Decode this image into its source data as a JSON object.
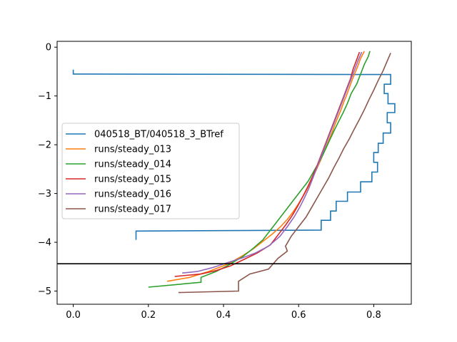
{
  "chart_data": {
    "type": "line",
    "title": "",
    "xlabel": "",
    "ylabel": "",
    "xlim": [
      -0.043,
      0.9
    ],
    "ylim": [
      -5.27,
      0.12
    ],
    "xticks": [
      0.0,
      0.2,
      0.4,
      0.6,
      0.8
    ],
    "xtick_labels": [
      "0.0",
      "0.2",
      "0.4",
      "0.6",
      "0.8"
    ],
    "yticks": [
      0,
      -1,
      -2,
      -3,
      -4,
      -5
    ],
    "ytick_labels": [
      "0",
      "−1",
      "−2",
      "−3",
      "−4",
      "−5"
    ],
    "hline": {
      "y": -4.44,
      "color": "#000000"
    },
    "legend_position": "center-left",
    "series": [
      {
        "name": "040518_BT/040518_3_BTref",
        "color": "#1f77b4",
        "points": [
          [
            0.0,
            -0.46
          ],
          [
            0.0,
            -0.55
          ],
          [
            0.845,
            -0.56
          ],
          [
            0.845,
            -0.76
          ],
          [
            0.828,
            -0.76
          ],
          [
            0.828,
            -0.95
          ],
          [
            0.838,
            -0.95
          ],
          [
            0.838,
            -1.16
          ],
          [
            0.856,
            -1.16
          ],
          [
            0.856,
            -1.34
          ],
          [
            0.836,
            -1.34
          ],
          [
            0.836,
            -1.55
          ],
          [
            0.845,
            -1.55
          ],
          [
            0.845,
            -1.76
          ],
          [
            0.825,
            -1.76
          ],
          [
            0.825,
            -1.97
          ],
          [
            0.812,
            -1.97
          ],
          [
            0.812,
            -2.16
          ],
          [
            0.8,
            -2.16
          ],
          [
            0.8,
            -2.36
          ],
          [
            0.81,
            -2.36
          ],
          [
            0.81,
            -2.56
          ],
          [
            0.795,
            -2.56
          ],
          [
            0.795,
            -2.76
          ],
          [
            0.765,
            -2.76
          ],
          [
            0.765,
            -2.97
          ],
          [
            0.73,
            -2.97
          ],
          [
            0.73,
            -3.16
          ],
          [
            0.7,
            -3.16
          ],
          [
            0.7,
            -3.36
          ],
          [
            0.685,
            -3.36
          ],
          [
            0.685,
            -3.55
          ],
          [
            0.66,
            -3.55
          ],
          [
            0.66,
            -3.75
          ],
          [
            0.167,
            -3.77
          ],
          [
            0.167,
            -3.95
          ]
        ]
      },
      {
        "name": "runs/steady_013",
        "color": "#ff7f0e",
        "points": [
          [
            0.775,
            -0.08
          ],
          [
            0.765,
            -0.23
          ],
          [
            0.758,
            -0.38
          ],
          [
            0.75,
            -0.53
          ],
          [
            0.742,
            -0.68
          ],
          [
            0.735,
            -0.83
          ],
          [
            0.728,
            -0.98
          ],
          [
            0.72,
            -1.13
          ],
          [
            0.713,
            -1.28
          ],
          [
            0.705,
            -1.43
          ],
          [
            0.697,
            -1.58
          ],
          [
            0.69,
            -1.73
          ],
          [
            0.682,
            -1.88
          ],
          [
            0.674,
            -2.03
          ],
          [
            0.666,
            -2.18
          ],
          [
            0.658,
            -2.33
          ],
          [
            0.649,
            -2.48
          ],
          [
            0.64,
            -2.63
          ],
          [
            0.631,
            -2.78
          ],
          [
            0.621,
            -2.93
          ],
          [
            0.61,
            -3.08
          ],
          [
            0.598,
            -3.23
          ],
          [
            0.585,
            -3.38
          ],
          [
            0.57,
            -3.53
          ],
          [
            0.552,
            -3.68
          ],
          [
            0.53,
            -3.83
          ],
          [
            0.505,
            -3.98
          ],
          [
            0.48,
            -4.13
          ],
          [
            0.45,
            -4.28
          ],
          [
            0.41,
            -4.45
          ],
          [
            0.36,
            -4.6
          ],
          [
            0.31,
            -4.72
          ],
          [
            0.25,
            -4.8
          ]
        ]
      },
      {
        "name": "runs/steady_014",
        "color": "#2ca02c",
        "points": [
          [
            0.79,
            -0.08
          ],
          [
            0.785,
            -0.2
          ],
          [
            0.775,
            -0.35
          ],
          [
            0.765,
            -0.55
          ],
          [
            0.755,
            -0.75
          ],
          [
            0.74,
            -0.95
          ],
          [
            0.73,
            -1.15
          ],
          [
            0.718,
            -1.35
          ],
          [
            0.705,
            -1.55
          ],
          [
            0.692,
            -1.75
          ],
          [
            0.68,
            -1.95
          ],
          [
            0.668,
            -2.15
          ],
          [
            0.655,
            -2.35
          ],
          [
            0.64,
            -2.55
          ],
          [
            0.625,
            -2.75
          ],
          [
            0.605,
            -2.95
          ],
          [
            0.585,
            -3.15
          ],
          [
            0.565,
            -3.35
          ],
          [
            0.545,
            -3.55
          ],
          [
            0.525,
            -3.75
          ],
          [
            0.505,
            -3.95
          ],
          [
            0.475,
            -4.15
          ],
          [
            0.45,
            -4.3
          ],
          [
            0.41,
            -4.48
          ],
          [
            0.38,
            -4.6
          ],
          [
            0.34,
            -4.72
          ],
          [
            0.34,
            -4.82
          ],
          [
            0.2,
            -4.92
          ]
        ]
      },
      {
        "name": "runs/steady_015",
        "color": "#d62728",
        "points": [
          [
            0.762,
            -0.1
          ],
          [
            0.755,
            -0.25
          ],
          [
            0.745,
            -0.45
          ],
          [
            0.738,
            -0.65
          ],
          [
            0.728,
            -0.85
          ],
          [
            0.718,
            -1.05
          ],
          [
            0.708,
            -1.25
          ],
          [
            0.698,
            -1.45
          ],
          [
            0.688,
            -1.65
          ],
          [
            0.678,
            -1.85
          ],
          [
            0.668,
            -2.05
          ],
          [
            0.658,
            -2.25
          ],
          [
            0.648,
            -2.45
          ],
          [
            0.637,
            -2.65
          ],
          [
            0.625,
            -2.85
          ],
          [
            0.612,
            -3.05
          ],
          [
            0.598,
            -3.25
          ],
          [
            0.583,
            -3.45
          ],
          [
            0.565,
            -3.65
          ],
          [
            0.545,
            -3.85
          ],
          [
            0.525,
            -4.05
          ],
          [
            0.49,
            -4.22
          ],
          [
            0.455,
            -4.35
          ],
          [
            0.42,
            -4.48
          ],
          [
            0.38,
            -4.58
          ],
          [
            0.34,
            -4.65
          ],
          [
            0.27,
            -4.7
          ]
        ]
      },
      {
        "name": "runs/steady_016",
        "color": "#9467bd",
        "points": [
          [
            0.768,
            -0.1
          ],
          [
            0.758,
            -0.28
          ],
          [
            0.748,
            -0.48
          ],
          [
            0.738,
            -0.68
          ],
          [
            0.728,
            -0.88
          ],
          [
            0.718,
            -1.08
          ],
          [
            0.708,
            -1.28
          ],
          [
            0.698,
            -1.48
          ],
          [
            0.688,
            -1.68
          ],
          [
            0.678,
            -1.88
          ],
          [
            0.668,
            -2.08
          ],
          [
            0.658,
            -2.28
          ],
          [
            0.648,
            -2.48
          ],
          [
            0.638,
            -2.68
          ],
          [
            0.628,
            -2.88
          ],
          [
            0.616,
            -3.08
          ],
          [
            0.603,
            -3.28
          ],
          [
            0.588,
            -3.48
          ],
          [
            0.57,
            -3.68
          ],
          [
            0.55,
            -3.88
          ],
          [
            0.52,
            -4.08
          ],
          [
            0.485,
            -4.22
          ],
          [
            0.45,
            -4.32
          ],
          [
            0.41,
            -4.42
          ],
          [
            0.37,
            -4.52
          ],
          [
            0.33,
            -4.6
          ],
          [
            0.29,
            -4.63
          ]
        ]
      },
      {
        "name": "runs/steady_017",
        "color": "#8c564b",
        "points": [
          [
            0.845,
            -0.12
          ],
          [
            0.835,
            -0.3
          ],
          [
            0.825,
            -0.48
          ],
          [
            0.812,
            -0.68
          ],
          [
            0.8,
            -0.88
          ],
          [
            0.787,
            -1.08
          ],
          [
            0.775,
            -1.28
          ],
          [
            0.762,
            -1.48
          ],
          [
            0.748,
            -1.68
          ],
          [
            0.735,
            -1.88
          ],
          [
            0.72,
            -2.08
          ],
          [
            0.707,
            -2.28
          ],
          [
            0.693,
            -2.48
          ],
          [
            0.68,
            -2.68
          ],
          [
            0.665,
            -2.88
          ],
          [
            0.65,
            -3.08
          ],
          [
            0.635,
            -3.28
          ],
          [
            0.62,
            -3.48
          ],
          [
            0.6,
            -3.68
          ],
          [
            0.58,
            -3.88
          ],
          [
            0.565,
            -4.08
          ],
          [
            0.57,
            -4.18
          ],
          [
            0.545,
            -4.33
          ],
          [
            0.52,
            -4.55
          ],
          [
            0.47,
            -4.65
          ],
          [
            0.44,
            -4.8
          ],
          [
            0.44,
            -5.0
          ],
          [
            0.28,
            -5.03
          ]
        ]
      }
    ]
  }
}
